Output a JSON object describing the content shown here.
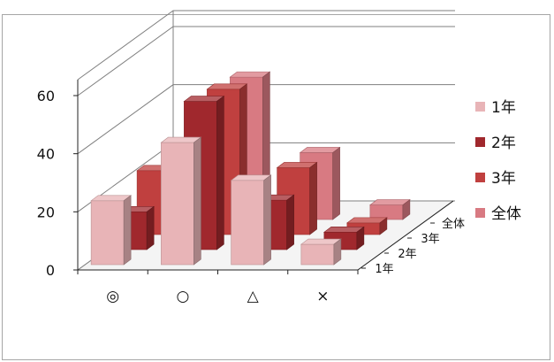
{
  "chart_data": {
    "type": "bar",
    "subtype": "3d-clustered-depth",
    "title": "",
    "xlabel": "",
    "ylabel": "",
    "ylim": [
      0,
      60
    ],
    "yticks": [
      0,
      20,
      40,
      60
    ],
    "grid": true,
    "legend_position": "right",
    "categories": [
      "◎",
      "○",
      "△",
      "×"
    ],
    "series": [
      {
        "name": "1年",
        "depth_label": "1年",
        "color": "#e8b4b7",
        "values": [
          22,
          42,
          29,
          7
        ]
      },
      {
        "name": "2年",
        "depth_label": "2年",
        "color": "#a0282d",
        "values": [
          13,
          51,
          17,
          6
        ]
      },
      {
        "name": "3年",
        "depth_label": "3年",
        "color": "#c0403f",
        "values": [
          22,
          50,
          23,
          4
        ]
      },
      {
        "name": "全体",
        "depth_label": "全体",
        "color": "#d87a82",
        "values": [
          0,
          49,
          23,
          5
        ]
      }
    ]
  }
}
